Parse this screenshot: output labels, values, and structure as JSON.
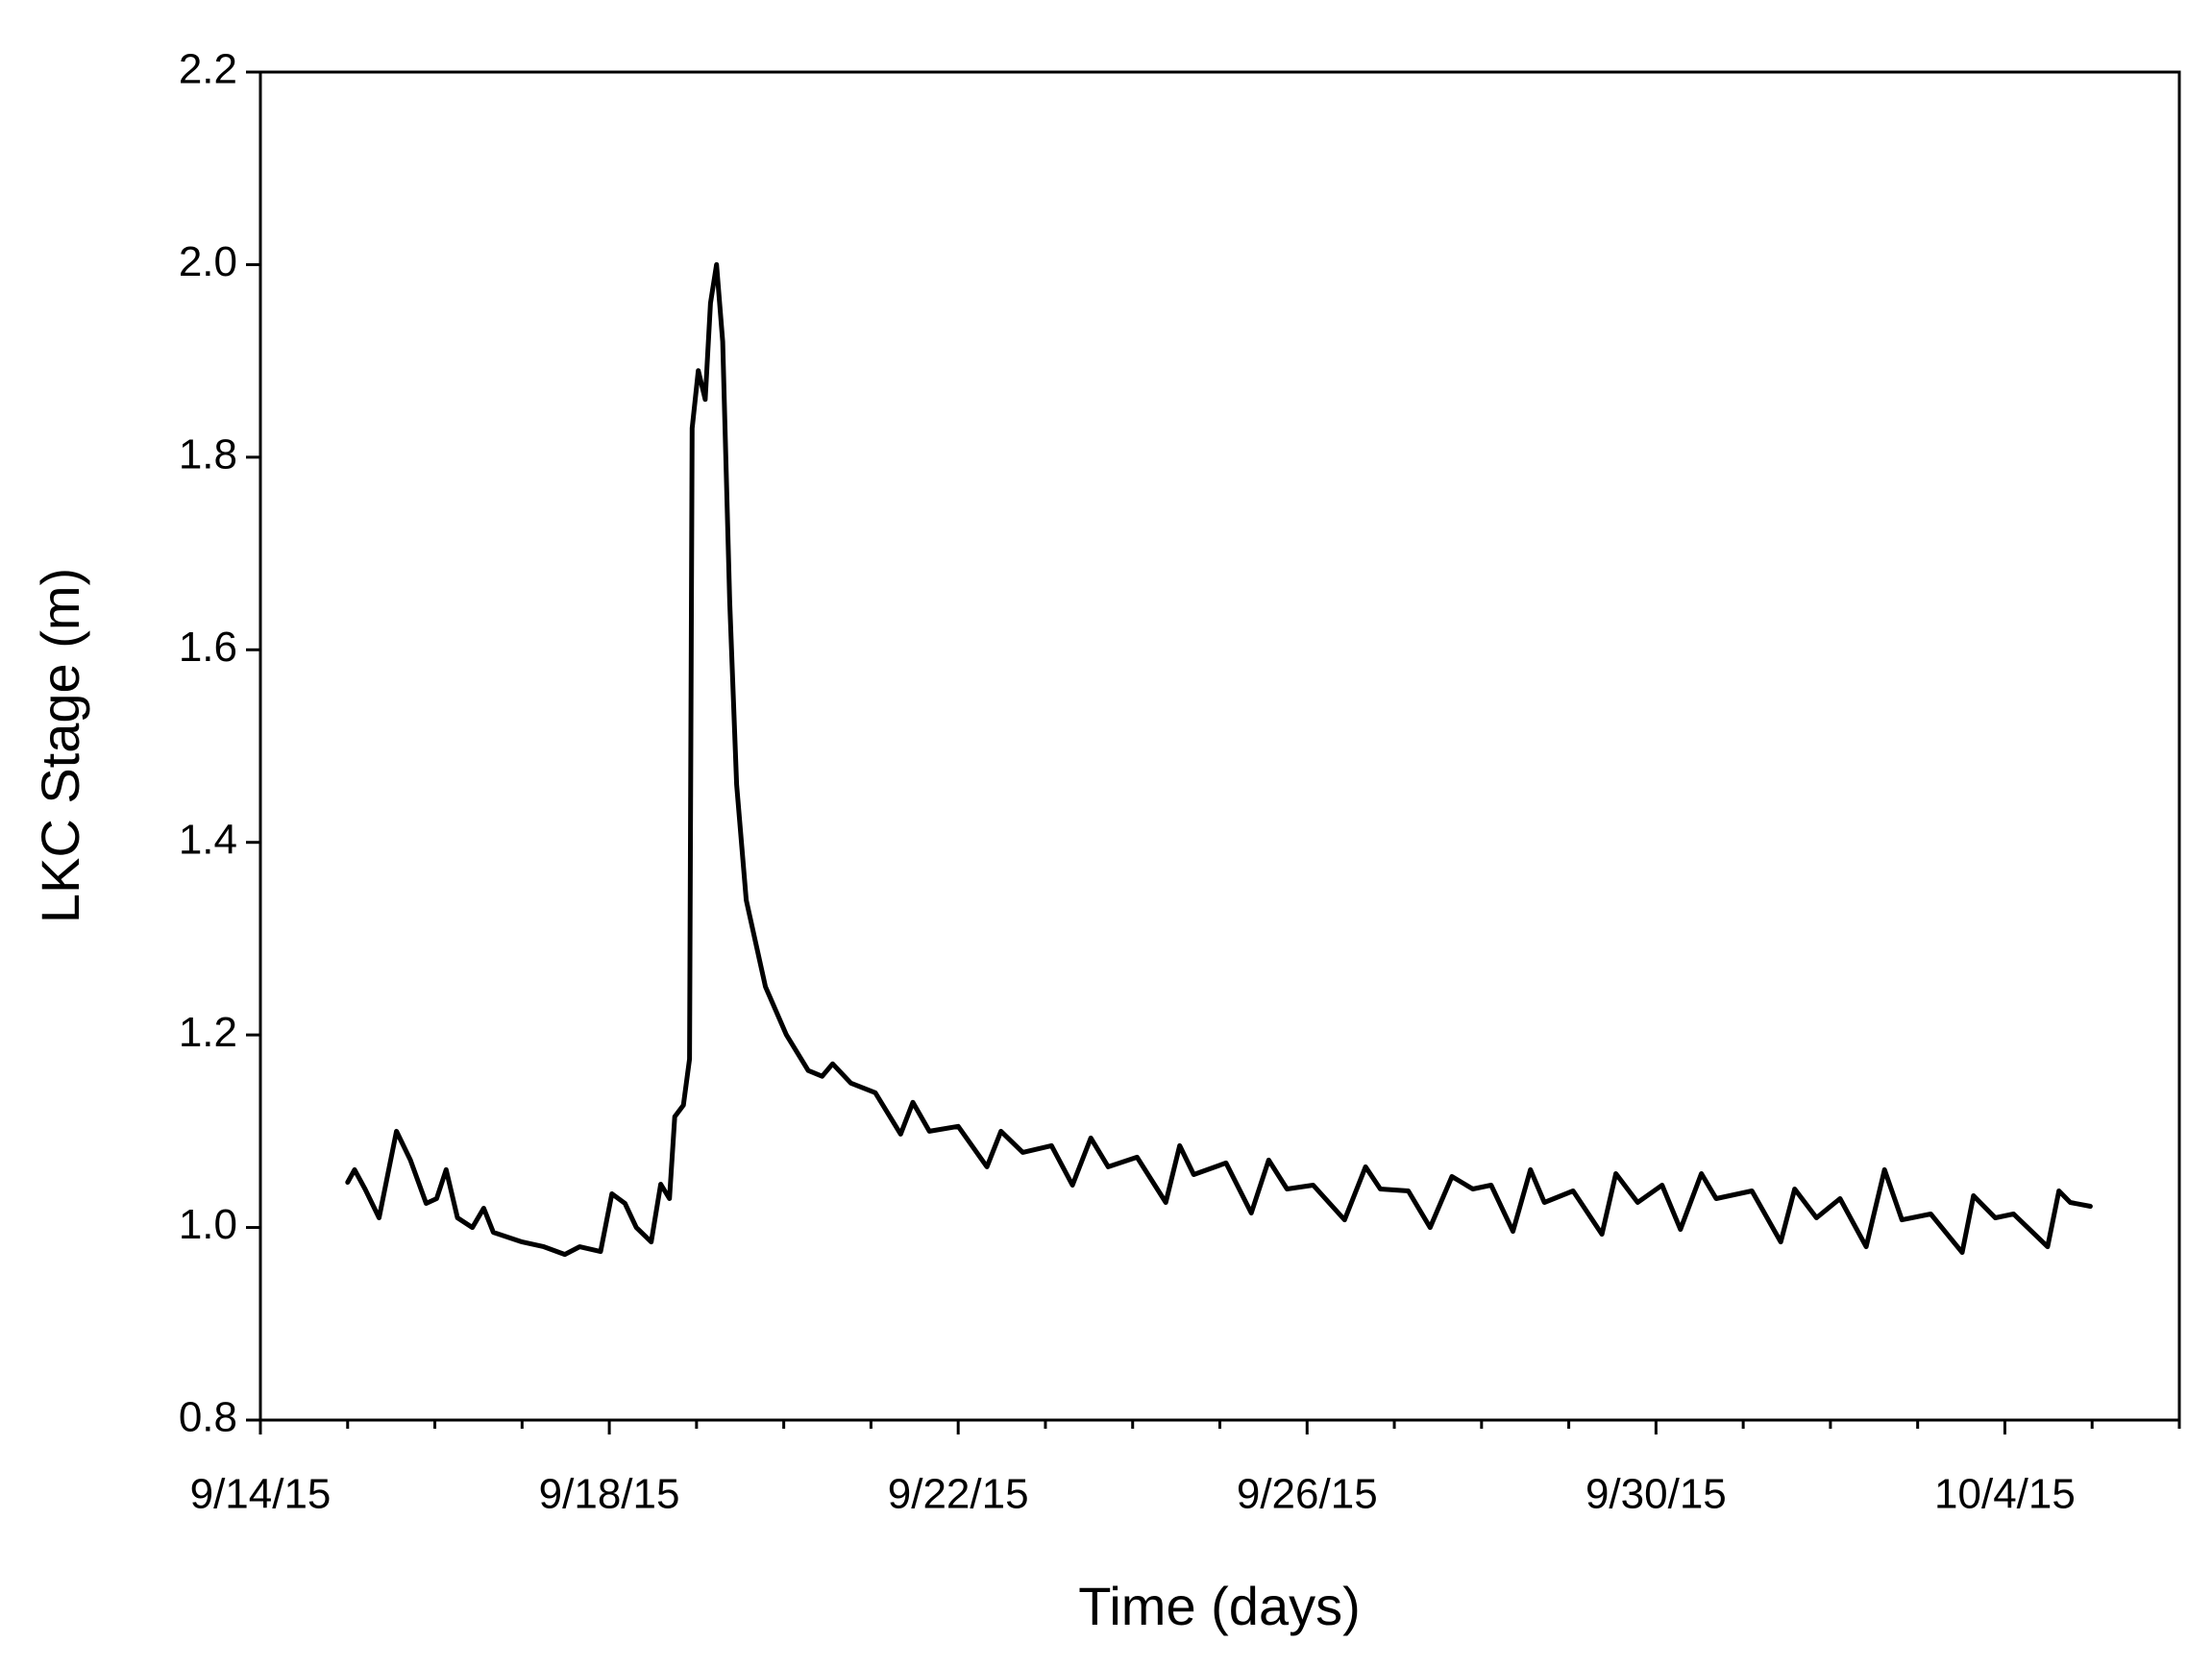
{
  "chart_data": {
    "type": "line",
    "xlabel": "Time (days)",
    "ylabel": "LKC Stage (m)",
    "x": [
      15.0,
      15.08,
      15.2,
      15.36,
      15.56,
      15.72,
      15.9,
      16.02,
      16.13,
      16.26,
      16.43,
      16.56,
      16.67,
      17.0,
      17.25,
      17.49,
      17.66,
      17.9,
      18.03,
      18.18,
      18.31,
      18.48,
      18.59,
      18.69,
      18.75,
      18.85,
      18.92,
      18.95,
      19.02,
      19.1,
      19.16,
      19.23,
      19.3,
      19.38,
      19.46,
      19.57,
      19.79,
      20.03,
      20.28,
      20.44,
      20.56,
      20.77,
      21.05,
      21.34,
      21.48,
      21.67,
      22.0,
      22.33,
      22.49,
      22.74,
      23.07,
      23.31,
      23.52,
      23.72,
      24.05,
      24.38,
      24.54,
      24.7,
      25.07,
      25.36,
      25.56,
      25.77,
      26.07,
      26.43,
      26.67,
      26.84,
      27.16,
      27.41,
      27.66,
      27.9,
      28.11,
      28.36,
      28.56,
      28.72,
      29.05,
      29.38,
      29.54,
      29.79,
      30.07,
      30.28,
      30.52,
      30.69,
      31.1,
      31.43,
      31.59,
      31.84,
      32.11,
      32.41,
      32.62,
      32.82,
      33.15,
      33.51,
      33.64,
      33.89,
      34.1,
      34.49,
      34.62,
      34.75,
      34.98
    ],
    "series": [
      {
        "color": "#000000",
        "values": [
          1.047,
          1.06,
          1.04,
          1.01,
          1.1,
          1.07,
          1.025,
          1.03,
          1.06,
          1.01,
          1.0,
          1.02,
          0.995,
          0.985,
          0.98,
          0.972,
          0.98,
          0.975,
          1.035,
          1.025,
          1.0,
          0.985,
          1.045,
          1.03,
          1.115,
          1.127,
          1.175,
          1.83,
          1.89,
          1.86,
          1.96,
          2.0,
          1.92,
          1.65,
          1.46,
          1.34,
          1.25,
          1.2,
          1.163,
          1.157,
          1.17,
          1.15,
          1.14,
          1.097,
          1.13,
          1.1,
          1.105,
          1.063,
          1.1,
          1.078,
          1.085,
          1.044,
          1.093,
          1.063,
          1.073,
          1.026,
          1.085,
          1.055,
          1.067,
          1.015,
          1.07,
          1.04,
          1.044,
          1.008,
          1.063,
          1.04,
          1.038,
          1.0,
          1.053,
          1.04,
          1.044,
          0.996,
          1.06,
          1.026,
          1.038,
          0.993,
          1.056,
          1.026,
          1.044,
          0.998,
          1.056,
          1.03,
          1.038,
          0.985,
          1.04,
          1.01,
          1.03,
          0.98,
          1.06,
          1.008,
          1.014,
          0.974,
          1.033,
          1.01,
          1.014,
          0.98,
          1.038,
          1.026,
          1.022
        ]
      }
    ],
    "xlim": [
      14,
      36
    ],
    "xticks": [
      {
        "value": 14,
        "label": "9/14/15"
      },
      {
        "value": 18,
        "label": "9/18/15"
      },
      {
        "value": 22,
        "label": "9/22/15"
      },
      {
        "value": 26,
        "label": "9/26/15"
      },
      {
        "value": 30,
        "label": "9/30/15"
      },
      {
        "value": 34,
        "label": "10/4/15"
      }
    ],
    "xminorticks": [
      15,
      16,
      17,
      19,
      20,
      21,
      23,
      24,
      25,
      27,
      28,
      29,
      31,
      32,
      33,
      35,
      36
    ],
    "ylim": [
      0.8,
      2.2
    ],
    "yticks": [
      0.8,
      {
        "value": 1.0,
        "label": "1.0"
      },
      1.2,
      1.4,
      1.6,
      1.8,
      {
        "value": 2.0,
        "label": "2.0"
      },
      2.2
    ]
  }
}
